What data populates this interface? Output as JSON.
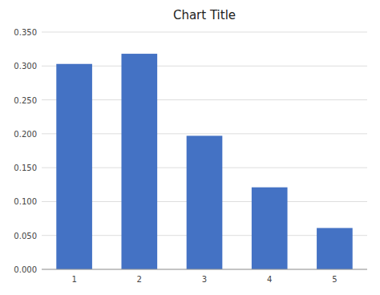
{
  "chart_data": {
    "type": "bar",
    "title": "Chart Title",
    "categories": [
      1,
      2,
      3,
      4,
      5
    ],
    "values": [
      0.303,
      0.318,
      0.197,
      0.121,
      0.061
    ],
    "color": "#4472C4",
    "ylim": [
      0,
      0.35
    ],
    "yticks": [
      {
        "value": 0.0,
        "label": "0.000"
      },
      {
        "value": 0.05,
        "label": "0.050"
      },
      {
        "value": 0.1,
        "label": "0.100"
      },
      {
        "value": 0.15,
        "label": "0.150"
      },
      {
        "value": 0.2,
        "label": "0.200"
      },
      {
        "value": 0.25,
        "label": "0.250"
      },
      {
        "value": 0.3,
        "label": "0.300"
      },
      {
        "value": 0.35,
        "label": "0.350"
      }
    ],
    "grid": true
  }
}
